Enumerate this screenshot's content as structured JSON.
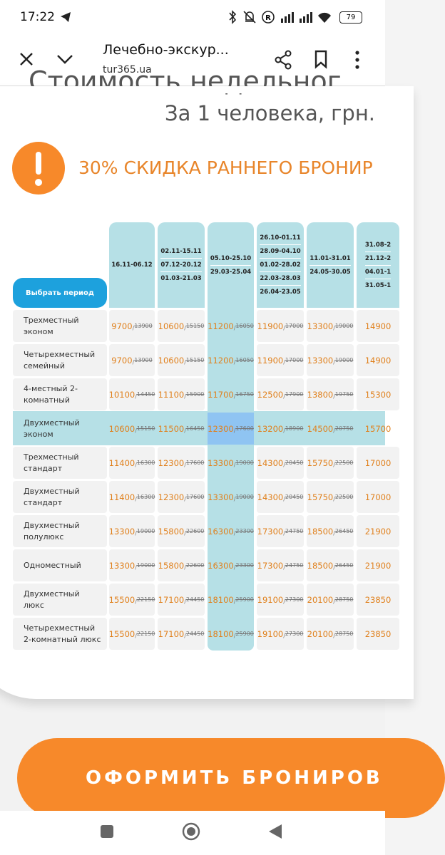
{
  "status_bar": {
    "time": "17:22",
    "battery": "79"
  },
  "browser": {
    "title": "Лечебно-экскур...",
    "url": "tur365.ua"
  },
  "heading": "Стоимость недельног",
  "subheading": "За 1 человека, грн.",
  "discount": "30% СКИДКА РАННЕГО БРОНИР",
  "table": {
    "select_button": "Выбрать период",
    "columns": [
      [
        "16.11-06.12"
      ],
      [
        "02.11-15.11",
        "07.12-20.12",
        "01.03-21.03"
      ],
      [
        "05.10-25.10",
        "29.03-25.04"
      ],
      [
        "26.10-01.11",
        "28.09-04.10",
        "01.02-28.02",
        "22.03-28.03",
        "26.04-23.05"
      ],
      [
        "11.01-31.01",
        "24.05-30.05"
      ],
      [
        "31.08-2",
        "21.12-2",
        "04.01-1",
        "31.05-1"
      ]
    ],
    "rows": [
      {
        "name": "Трехместный эконом",
        "cells": [
          {
            "price": "9700",
            "old": "13900"
          },
          {
            "price": "10600",
            "old": "15150"
          },
          {
            "price": "11200",
            "old": "16050"
          },
          {
            "price": "11900",
            "old": "17000"
          },
          {
            "price": "13300",
            "old": "19000"
          },
          {
            "price": "14900"
          }
        ]
      },
      {
        "name": "Четырехместный семейный",
        "cells": [
          {
            "price": "9700",
            "old": "13900"
          },
          {
            "price": "10600",
            "old": "15150"
          },
          {
            "price": "11200",
            "old": "16050"
          },
          {
            "price": "11900",
            "old": "17000"
          },
          {
            "price": "13300",
            "old": "19000"
          },
          {
            "price": "14900"
          }
        ]
      },
      {
        "name": "4-местный 2-комнатный",
        "cells": [
          {
            "price": "10100",
            "old": "14450"
          },
          {
            "price": "11100",
            "old": "15900"
          },
          {
            "price": "11700",
            "old": "16750"
          },
          {
            "price": "12500",
            "old": "17900"
          },
          {
            "price": "13800",
            "old": "19750"
          },
          {
            "price": "15300"
          }
        ]
      },
      {
        "name": "Двухместный эконом",
        "cells": [
          {
            "price": "10600",
            "old": "15150"
          },
          {
            "price": "11500",
            "old": "16450"
          },
          {
            "price": "12300",
            "old": "17600"
          },
          {
            "price": "13200",
            "old": "18900"
          },
          {
            "price": "14500",
            "old": "20750"
          },
          {
            "price": "15700"
          }
        ]
      },
      {
        "name": "Трехместный стандарт",
        "cells": [
          {
            "price": "11400",
            "old": "16300"
          },
          {
            "price": "12300",
            "old": "17600"
          },
          {
            "price": "13300",
            "old": "19000"
          },
          {
            "price": "14300",
            "old": "20450"
          },
          {
            "price": "15750",
            "old": "22500"
          },
          {
            "price": "17000"
          }
        ]
      },
      {
        "name": "Двухместный стандарт",
        "cells": [
          {
            "price": "11400",
            "old": "16300"
          },
          {
            "price": "12300",
            "old": "17600"
          },
          {
            "price": "13300",
            "old": "19000"
          },
          {
            "price": "14300",
            "old": "20450"
          },
          {
            "price": "15750",
            "old": "22500"
          },
          {
            "price": "17000"
          }
        ]
      },
      {
        "name": "Двухместный полулюкс",
        "cells": [
          {
            "price": "13300",
            "old": "19000"
          },
          {
            "price": "15800",
            "old": "22600"
          },
          {
            "price": "16300",
            "old": "23300"
          },
          {
            "price": "17300",
            "old": "24750"
          },
          {
            "price": "18500",
            "old": "26450"
          },
          {
            "price": "21900"
          }
        ]
      },
      {
        "name": "Одноместный",
        "cells": [
          {
            "price": "13300",
            "old": "19000"
          },
          {
            "price": "15800",
            "old": "22600"
          },
          {
            "price": "16300",
            "old": "23300"
          },
          {
            "price": "17300",
            "old": "24750"
          },
          {
            "price": "18500",
            "old": "26450"
          },
          {
            "price": "21900"
          }
        ]
      },
      {
        "name": "Двухместный люкс",
        "cells": [
          {
            "price": "15500",
            "old": "22150"
          },
          {
            "price": "17100",
            "old": "24450"
          },
          {
            "price": "18100",
            "old": "25900"
          },
          {
            "price": "19100",
            "old": "27300"
          },
          {
            "price": "20100",
            "old": "28750"
          },
          {
            "price": "23850"
          }
        ]
      },
      {
        "name": "Четырехместный 2-комнатный люкс",
        "cells": [
          {
            "price": "15500",
            "old": "22150"
          },
          {
            "price": "17100",
            "old": "24450"
          },
          {
            "price": "18100",
            "old": "25900"
          },
          {
            "price": "19100",
            "old": "27300"
          },
          {
            "price": "20100",
            "old": "28750"
          },
          {
            "price": "23850"
          }
        ]
      }
    ]
  },
  "book_button": "ОФОРМИТЬ БРОНИРОВ"
}
